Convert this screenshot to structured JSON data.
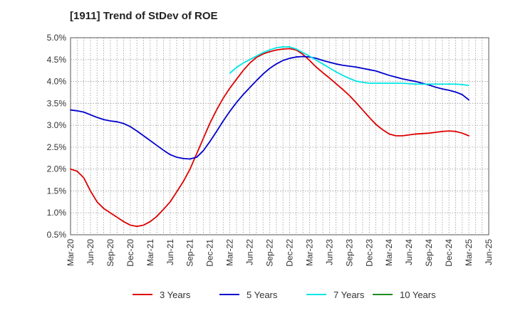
{
  "chart_data": {
    "type": "line",
    "title": "[1911]  Trend of StDev of ROE",
    "xlabel": "",
    "ylabel": "",
    "ylim": [
      0.5,
      5.0
    ],
    "y_ticks": [
      "0.5%",
      "1.0%",
      "1.5%",
      "2.0%",
      "2.5%",
      "3.0%",
      "3.5%",
      "4.0%",
      "4.5%",
      "5.0%"
    ],
    "x_ticks": [
      "Mar-20",
      "Jun-20",
      "Sep-20",
      "Dec-20",
      "Mar-21",
      "Jun-21",
      "Sep-21",
      "Dec-21",
      "Mar-22",
      "Jun-22",
      "Sep-22",
      "Dec-22",
      "Mar-23",
      "Jun-23",
      "Sep-23",
      "Dec-23",
      "Mar-24",
      "Jun-24",
      "Sep-24",
      "Dec-24",
      "Mar-25",
      "Jun-25"
    ],
    "grid": true,
    "legend_position": "bottom",
    "series": [
      {
        "name": "3 Years",
        "color": "#dd0000",
        "points": [
          [
            "Mar-20",
            2.0
          ],
          [
            "Apr-20",
            1.95
          ],
          [
            "May-20",
            1.8
          ],
          [
            "Jun-20",
            1.5
          ],
          [
            "Jul-20",
            1.25
          ],
          [
            "Aug-20",
            1.1
          ],
          [
            "Sep-20",
            1.0
          ],
          [
            "Oct-20",
            0.9
          ],
          [
            "Nov-20",
            0.8
          ],
          [
            "Dec-20",
            0.72
          ],
          [
            "Jan-21",
            0.69
          ],
          [
            "Feb-21",
            0.72
          ],
          [
            "Mar-21",
            0.8
          ],
          [
            "Apr-21",
            0.92
          ],
          [
            "May-21",
            1.08
          ],
          [
            "Jun-21",
            1.25
          ],
          [
            "Jul-21",
            1.48
          ],
          [
            "Aug-21",
            1.72
          ],
          [
            "Sep-21",
            2.0
          ],
          [
            "Oct-21",
            2.35
          ],
          [
            "Nov-21",
            2.7
          ],
          [
            "Dec-21",
            3.05
          ],
          [
            "Jan-22",
            3.35
          ],
          [
            "Feb-22",
            3.62
          ],
          [
            "Mar-22",
            3.85
          ],
          [
            "Apr-22",
            4.05
          ],
          [
            "May-22",
            4.25
          ],
          [
            "Jun-22",
            4.42
          ],
          [
            "Jul-22",
            4.55
          ],
          [
            "Aug-22",
            4.63
          ],
          [
            "Sep-22",
            4.68
          ],
          [
            "Oct-22",
            4.72
          ],
          [
            "Nov-22",
            4.74
          ],
          [
            "Dec-22",
            4.75
          ],
          [
            "Jan-23",
            4.72
          ],
          [
            "Feb-23",
            4.62
          ],
          [
            "Mar-23",
            4.48
          ],
          [
            "Apr-23",
            4.33
          ],
          [
            "May-23",
            4.2
          ],
          [
            "Jun-23",
            4.08
          ],
          [
            "Jul-23",
            3.95
          ],
          [
            "Aug-23",
            3.82
          ],
          [
            "Sep-23",
            3.68
          ],
          [
            "Oct-23",
            3.52
          ],
          [
            "Nov-23",
            3.35
          ],
          [
            "Dec-23",
            3.18
          ],
          [
            "Jan-24",
            3.02
          ],
          [
            "Feb-24",
            2.9
          ],
          [
            "Mar-24",
            2.8
          ],
          [
            "Apr-24",
            2.76
          ],
          [
            "May-24",
            2.76
          ],
          [
            "Jun-24",
            2.78
          ],
          [
            "Jul-24",
            2.8
          ],
          [
            "Aug-24",
            2.81
          ],
          [
            "Sep-24",
            2.82
          ],
          [
            "Oct-24",
            2.84
          ],
          [
            "Nov-24",
            2.86
          ],
          [
            "Dec-24",
            2.87
          ],
          [
            "Jan-25",
            2.86
          ],
          [
            "Feb-25",
            2.82
          ],
          [
            "Mar-25",
            2.76
          ]
        ]
      },
      {
        "name": "5 Years",
        "color": "#0000cc",
        "points": [
          [
            "Mar-20",
            3.35
          ],
          [
            "Apr-20",
            3.33
          ],
          [
            "May-20",
            3.3
          ],
          [
            "Jun-20",
            3.24
          ],
          [
            "Jul-20",
            3.18
          ],
          [
            "Aug-20",
            3.13
          ],
          [
            "Sep-20",
            3.1
          ],
          [
            "Oct-20",
            3.08
          ],
          [
            "Nov-20",
            3.04
          ],
          [
            "Dec-20",
            2.97
          ],
          [
            "Jan-21",
            2.87
          ],
          [
            "Feb-21",
            2.76
          ],
          [
            "Mar-21",
            2.65
          ],
          [
            "Apr-21",
            2.54
          ],
          [
            "May-21",
            2.43
          ],
          [
            "Jun-21",
            2.33
          ],
          [
            "Jul-21",
            2.27
          ],
          [
            "Aug-21",
            2.24
          ],
          [
            "Sep-21",
            2.23
          ],
          [
            "Oct-21",
            2.27
          ],
          [
            "Nov-21",
            2.42
          ],
          [
            "Dec-21",
            2.63
          ],
          [
            "Jan-22",
            2.86
          ],
          [
            "Feb-22",
            3.1
          ],
          [
            "Mar-22",
            3.32
          ],
          [
            "Apr-22",
            3.52
          ],
          [
            "May-22",
            3.7
          ],
          [
            "Jun-22",
            3.86
          ],
          [
            "Jul-22",
            4.02
          ],
          [
            "Aug-22",
            4.17
          ],
          [
            "Sep-22",
            4.3
          ],
          [
            "Oct-22",
            4.4
          ],
          [
            "Nov-22",
            4.48
          ],
          [
            "Dec-22",
            4.53
          ],
          [
            "Jan-23",
            4.56
          ],
          [
            "Feb-23",
            4.57
          ],
          [
            "Mar-23",
            4.56
          ],
          [
            "Apr-23",
            4.53
          ],
          [
            "May-23",
            4.48
          ],
          [
            "Jun-23",
            4.44
          ],
          [
            "Jul-23",
            4.4
          ],
          [
            "Aug-23",
            4.37
          ],
          [
            "Sep-23",
            4.35
          ],
          [
            "Oct-23",
            4.33
          ],
          [
            "Nov-23",
            4.3
          ],
          [
            "Dec-23",
            4.27
          ],
          [
            "Jan-24",
            4.24
          ],
          [
            "Feb-24",
            4.19
          ],
          [
            "Mar-24",
            4.14
          ],
          [
            "Apr-24",
            4.1
          ],
          [
            "May-24",
            4.06
          ],
          [
            "Jun-24",
            4.03
          ],
          [
            "Jul-24",
            4.0
          ],
          [
            "Aug-24",
            3.96
          ],
          [
            "Sep-24",
            3.92
          ],
          [
            "Oct-24",
            3.87
          ],
          [
            "Nov-24",
            3.83
          ],
          [
            "Dec-24",
            3.8
          ],
          [
            "Jan-25",
            3.76
          ],
          [
            "Feb-25",
            3.7
          ],
          [
            "Mar-25",
            3.58
          ]
        ]
      },
      {
        "name": "7 Years",
        "color": "#00e5e5",
        "points": [
          [
            "Mar-22",
            4.19
          ],
          [
            "Apr-22",
            4.32
          ],
          [
            "May-22",
            4.42
          ],
          [
            "Jun-22",
            4.5
          ],
          [
            "Jul-22",
            4.58
          ],
          [
            "Aug-22",
            4.66
          ],
          [
            "Sep-22",
            4.72
          ],
          [
            "Oct-22",
            4.77
          ],
          [
            "Nov-22",
            4.79
          ],
          [
            "Dec-22",
            4.79
          ],
          [
            "Jan-23",
            4.74
          ],
          [
            "Feb-23",
            4.66
          ],
          [
            "Mar-23",
            4.58
          ],
          [
            "Apr-23",
            4.49
          ],
          [
            "May-23",
            4.4
          ],
          [
            "Jun-23",
            4.31
          ],
          [
            "Jul-23",
            4.22
          ],
          [
            "Aug-23",
            4.14
          ],
          [
            "Sep-23",
            4.07
          ],
          [
            "Oct-23",
            4.01
          ],
          [
            "Nov-23",
            3.98
          ],
          [
            "Dec-23",
            3.96
          ],
          [
            "Jan-24",
            3.96
          ],
          [
            "Feb-24",
            3.96
          ],
          [
            "Mar-24",
            3.96
          ],
          [
            "Apr-24",
            3.96
          ],
          [
            "May-24",
            3.96
          ],
          [
            "Jun-24",
            3.95
          ],
          [
            "Jul-24",
            3.94
          ],
          [
            "Aug-24",
            3.94
          ],
          [
            "Sep-24",
            3.94
          ],
          [
            "Oct-24",
            3.94
          ],
          [
            "Nov-24",
            3.94
          ],
          [
            "Dec-24",
            3.94
          ],
          [
            "Jan-25",
            3.94
          ],
          [
            "Feb-25",
            3.93
          ],
          [
            "Mar-25",
            3.91
          ]
        ]
      },
      {
        "name": "10 Years",
        "color": "#228b22",
        "points": []
      }
    ]
  }
}
